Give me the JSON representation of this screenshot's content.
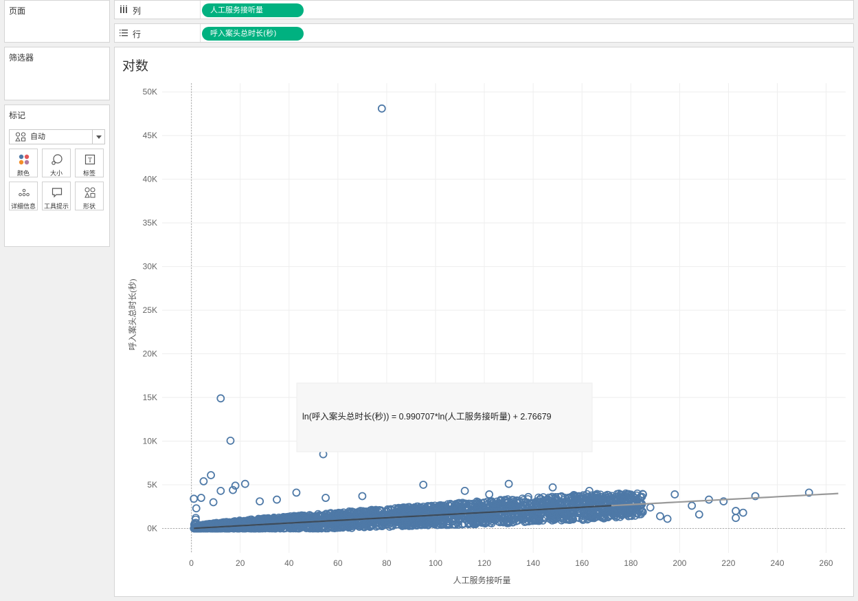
{
  "pages_panel": {
    "title": "页面"
  },
  "filters_panel": {
    "title": "筛选器"
  },
  "marks_panel": {
    "title": "标记",
    "mark_type": "自动",
    "cards": [
      {
        "label": "颜色",
        "icon": "color-icon"
      },
      {
        "label": "大小",
        "icon": "size-icon"
      },
      {
        "label": "标签",
        "icon": "label-icon"
      },
      {
        "label": "详细信息",
        "icon": "detail-icon"
      },
      {
        "label": "工具提示",
        "icon": "tooltip-icon"
      },
      {
        "label": "形状",
        "icon": "shape-icon"
      }
    ]
  },
  "columns_shelf": {
    "label": "列",
    "pill": "人工服务接听量"
  },
  "rows_shelf": {
    "label": "行",
    "pill": "呼入案头总时长(秒)"
  },
  "sheet": {
    "title": "对数"
  },
  "colors": {
    "pill": "#00b180",
    "mark": "#4e79a7",
    "trend": "#3b4a5a"
  },
  "chart_data": {
    "type": "scatter",
    "xlabel": "人工服务接听量",
    "ylabel": "呼入案头总时长(秒)",
    "xlim": [
      -12,
      268
    ],
    "ylim": [
      -2800,
      51000
    ],
    "xticks": [
      "0",
      "20",
      "40",
      "60",
      "80",
      "100",
      "120",
      "140",
      "160",
      "180",
      "200",
      "220",
      "240",
      "260"
    ],
    "xtick_values": [
      0,
      20,
      40,
      60,
      80,
      100,
      120,
      140,
      160,
      180,
      200,
      220,
      240,
      260
    ],
    "yticks": [
      "0K",
      "5K",
      "10K",
      "15K",
      "20K",
      "25K",
      "30K",
      "35K",
      "40K",
      "45K",
      "50K"
    ],
    "ytick_values": [
      0,
      5000,
      10000,
      15000,
      20000,
      25000,
      30000,
      35000,
      40000,
      45000,
      50000
    ],
    "grid": true,
    "marker": "hollow-circle",
    "trend_line": {
      "model": "logarithmic",
      "equation": "ln(呼入案头总时长(秒)) = 0.990707*ln(人工服务接听量) + 2.76679",
      "slope": 0.990707,
      "intercept": 2.76679,
      "x_range": [
        1,
        265
      ]
    },
    "outliers": [
      [
        78,
        48100
      ],
      [
        12,
        14900
      ],
      [
        16,
        10050
      ],
      [
        54,
        8500
      ],
      [
        5,
        5400
      ],
      [
        8,
        6100
      ],
      [
        22,
        5100
      ],
      [
        18,
        4900
      ],
      [
        12,
        4300
      ],
      [
        17,
        4400
      ],
      [
        4,
        3500
      ],
      [
        43,
        4100
      ],
      [
        95,
        5000
      ],
      [
        130,
        5100
      ],
      [
        148,
        4700
      ],
      [
        163,
        4300
      ],
      [
        185,
        3900
      ],
      [
        198,
        3900
      ],
      [
        218,
        3100
      ],
      [
        231,
        3700
      ],
      [
        253,
        4100
      ],
      [
        208,
        1600
      ],
      [
        205,
        2600
      ],
      [
        212,
        3300
      ],
      [
        195,
        1100
      ],
      [
        223,
        1200
      ],
      [
        226,
        1800
      ],
      [
        223,
        2000
      ],
      [
        192,
        1400
      ],
      [
        188,
        2400
      ],
      [
        172,
        3400
      ],
      [
        176,
        3300
      ],
      [
        180,
        2200
      ],
      [
        169,
        1400
      ],
      [
        162,
        1800
      ],
      [
        138,
        3600
      ],
      [
        112,
        4300
      ],
      [
        122,
        3900
      ],
      [
        70,
        3700
      ],
      [
        55,
        3500
      ],
      [
        35,
        3300
      ],
      [
        28,
        3100
      ],
      [
        9,
        3000
      ],
      [
        2,
        2300
      ],
      [
        1,
        3400
      ]
    ],
    "cloud_band": {
      "x_range": [
        1,
        185
      ],
      "description_points": [
        [
          2,
          500
        ],
        [
          10,
          900
        ],
        [
          20,
          1100
        ],
        [
          30,
          1300
        ],
        [
          40,
          1400
        ],
        [
          50,
          1600
        ],
        [
          60,
          1700
        ],
        [
          70,
          1800
        ],
        [
          80,
          1900
        ],
        [
          90,
          2000
        ],
        [
          100,
          2100
        ],
        [
          110,
          2300
        ],
        [
          120,
          2400
        ],
        [
          130,
          2500
        ],
        [
          140,
          2500
        ],
        [
          150,
          2600
        ],
        [
          160,
          2700
        ],
        [
          170,
          2600
        ],
        [
          180,
          2400
        ]
      ]
    }
  }
}
